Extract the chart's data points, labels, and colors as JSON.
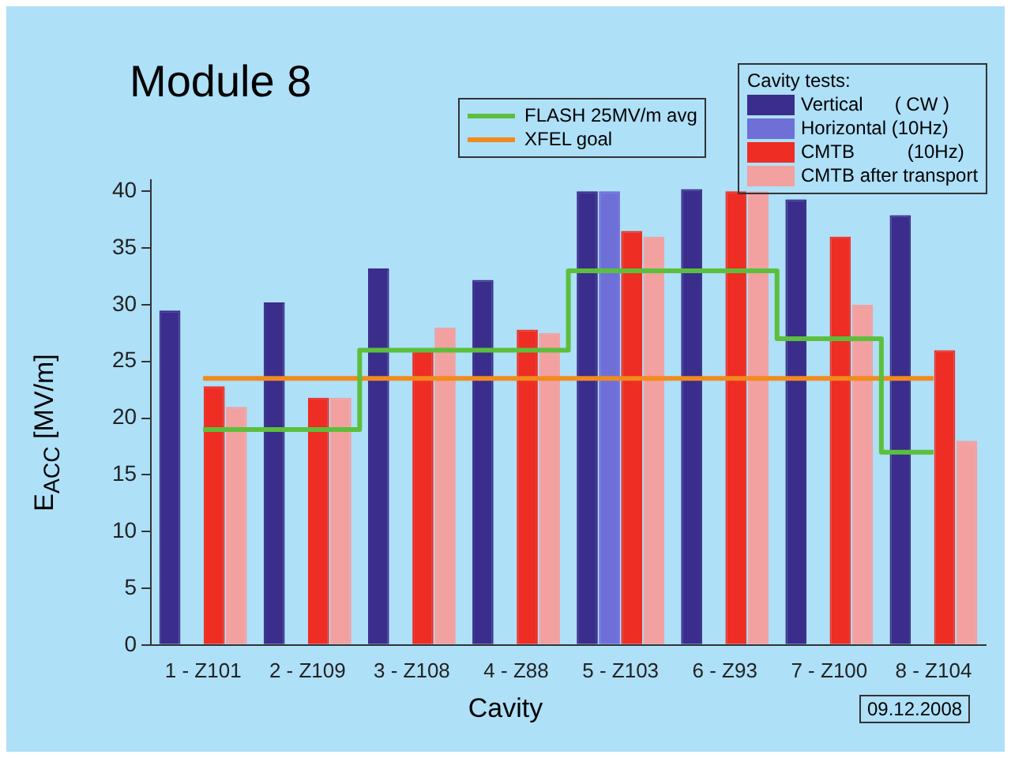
{
  "chart_data": {
    "type": "bar",
    "title": "Module 8",
    "xlabel": "Cavity",
    "ylabel": "E$_{ACC}$ [MV/m]",
    "legend_title": "Cavity tests:",
    "categories": [
      "1 - Z101",
      "2 - Z109",
      "3 - Z108",
      "4 - Z88",
      "5 - Z103",
      "6 - Z93",
      "7 - Z100",
      "8 - Z104"
    ],
    "series": [
      {
        "name": "Vertical      ( CW )",
        "color": "#3a2d8c",
        "values": [
          29.5,
          30.2,
          33.2,
          32.2,
          40,
          40.2,
          39.3,
          37.9
        ]
      },
      {
        "name": "Horizontal (10Hz)",
        "color": "#6f6fd8",
        "values": [
          null,
          null,
          null,
          null,
          40,
          null,
          null,
          null
        ]
      },
      {
        "name": "CMTB          (10Hz)",
        "color": "#ee2d24",
        "values": [
          22.8,
          21.8,
          26,
          27.8,
          36.5,
          40,
          36,
          26
        ]
      },
      {
        "name": "CMTB after transport",
        "color": "#f2a0a0",
        "values": [
          21,
          21.8,
          28,
          27.5,
          36,
          40,
          30,
          18
        ]
      },
      {
        "name": "FLASH 25MV/m avg",
        "type": "step",
        "color": "#5cbf3c",
        "values": [
          19,
          19,
          26,
          26,
          33,
          33,
          27,
          17
        ]
      },
      {
        "name": "XFEL goal",
        "type": "line",
        "color": "#f28a1e",
        "values": [
          23.5,
          23.5,
          23.5,
          23.5,
          23.5,
          23.5,
          23.5,
          23.5
        ]
      }
    ],
    "ylim": [
      0,
      41
    ],
    "yticks": [
      0,
      5,
      10,
      15,
      20,
      25,
      30,
      35,
      40
    ],
    "grid": false,
    "legend": "top right",
    "annotations": [
      "09.12.2008"
    ]
  }
}
